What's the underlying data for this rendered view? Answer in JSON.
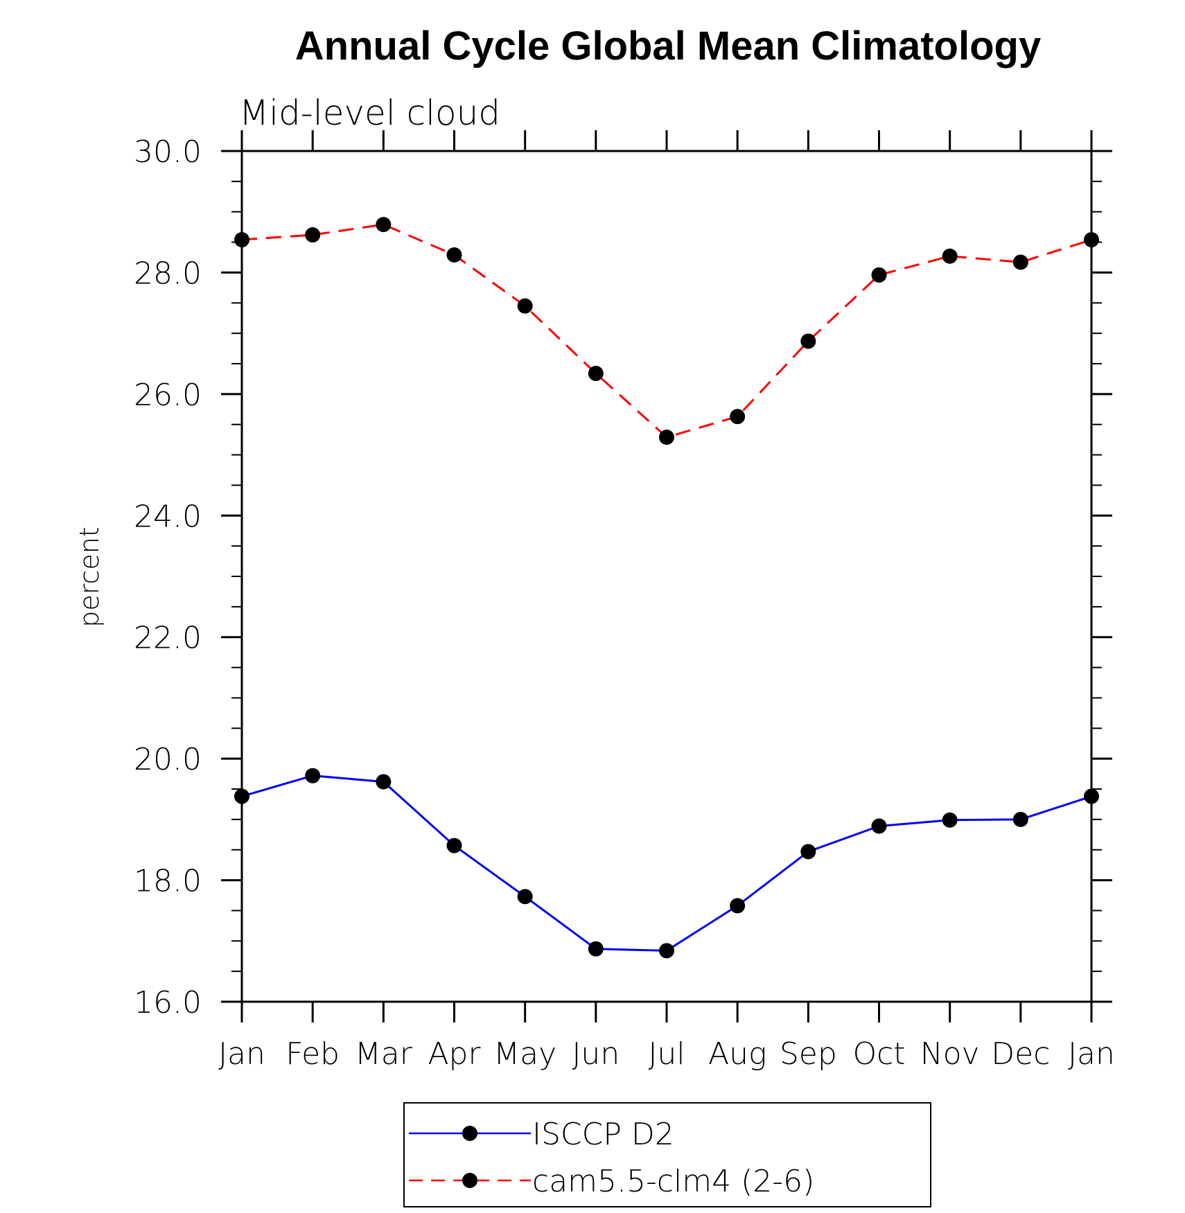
{
  "chart_data": {
    "type": "line",
    "title": "Annual Cycle Global Mean Climatology",
    "subtitle": "Mid-level cloud",
    "xlabel": "",
    "ylabel": "percent",
    "categories": [
      "Jan",
      "Feb",
      "Mar",
      "Apr",
      "May",
      "Jun",
      "Jul",
      "Aug",
      "Sep",
      "Oct",
      "Nov",
      "Dec",
      "Jan"
    ],
    "ylim": [
      16.0,
      30.0
    ],
    "yticks": [
      "16.0",
      "18.0",
      "20.0",
      "22.0",
      "24.0",
      "26.0",
      "28.0",
      "30.0"
    ],
    "grid": false,
    "legend_position": "bottom",
    "series": [
      {
        "name": "ISCCP D2",
        "color": "#0000ff",
        "style": "solid",
        "marker": "filled-circle",
        "values": [
          19.38,
          19.72,
          19.62,
          18.57,
          17.73,
          16.87,
          16.84,
          17.58,
          18.47,
          18.89,
          18.99,
          19.0,
          19.38
        ]
      },
      {
        "name": "cam5.5-clm4 (2-6)",
        "color": "#ff0000",
        "style": "dashed",
        "marker": "filled-circle",
        "values": [
          28.54,
          28.62,
          28.79,
          28.29,
          27.45,
          26.34,
          25.29,
          25.63,
          26.87,
          27.96,
          28.27,
          28.17,
          28.54
        ]
      }
    ]
  }
}
